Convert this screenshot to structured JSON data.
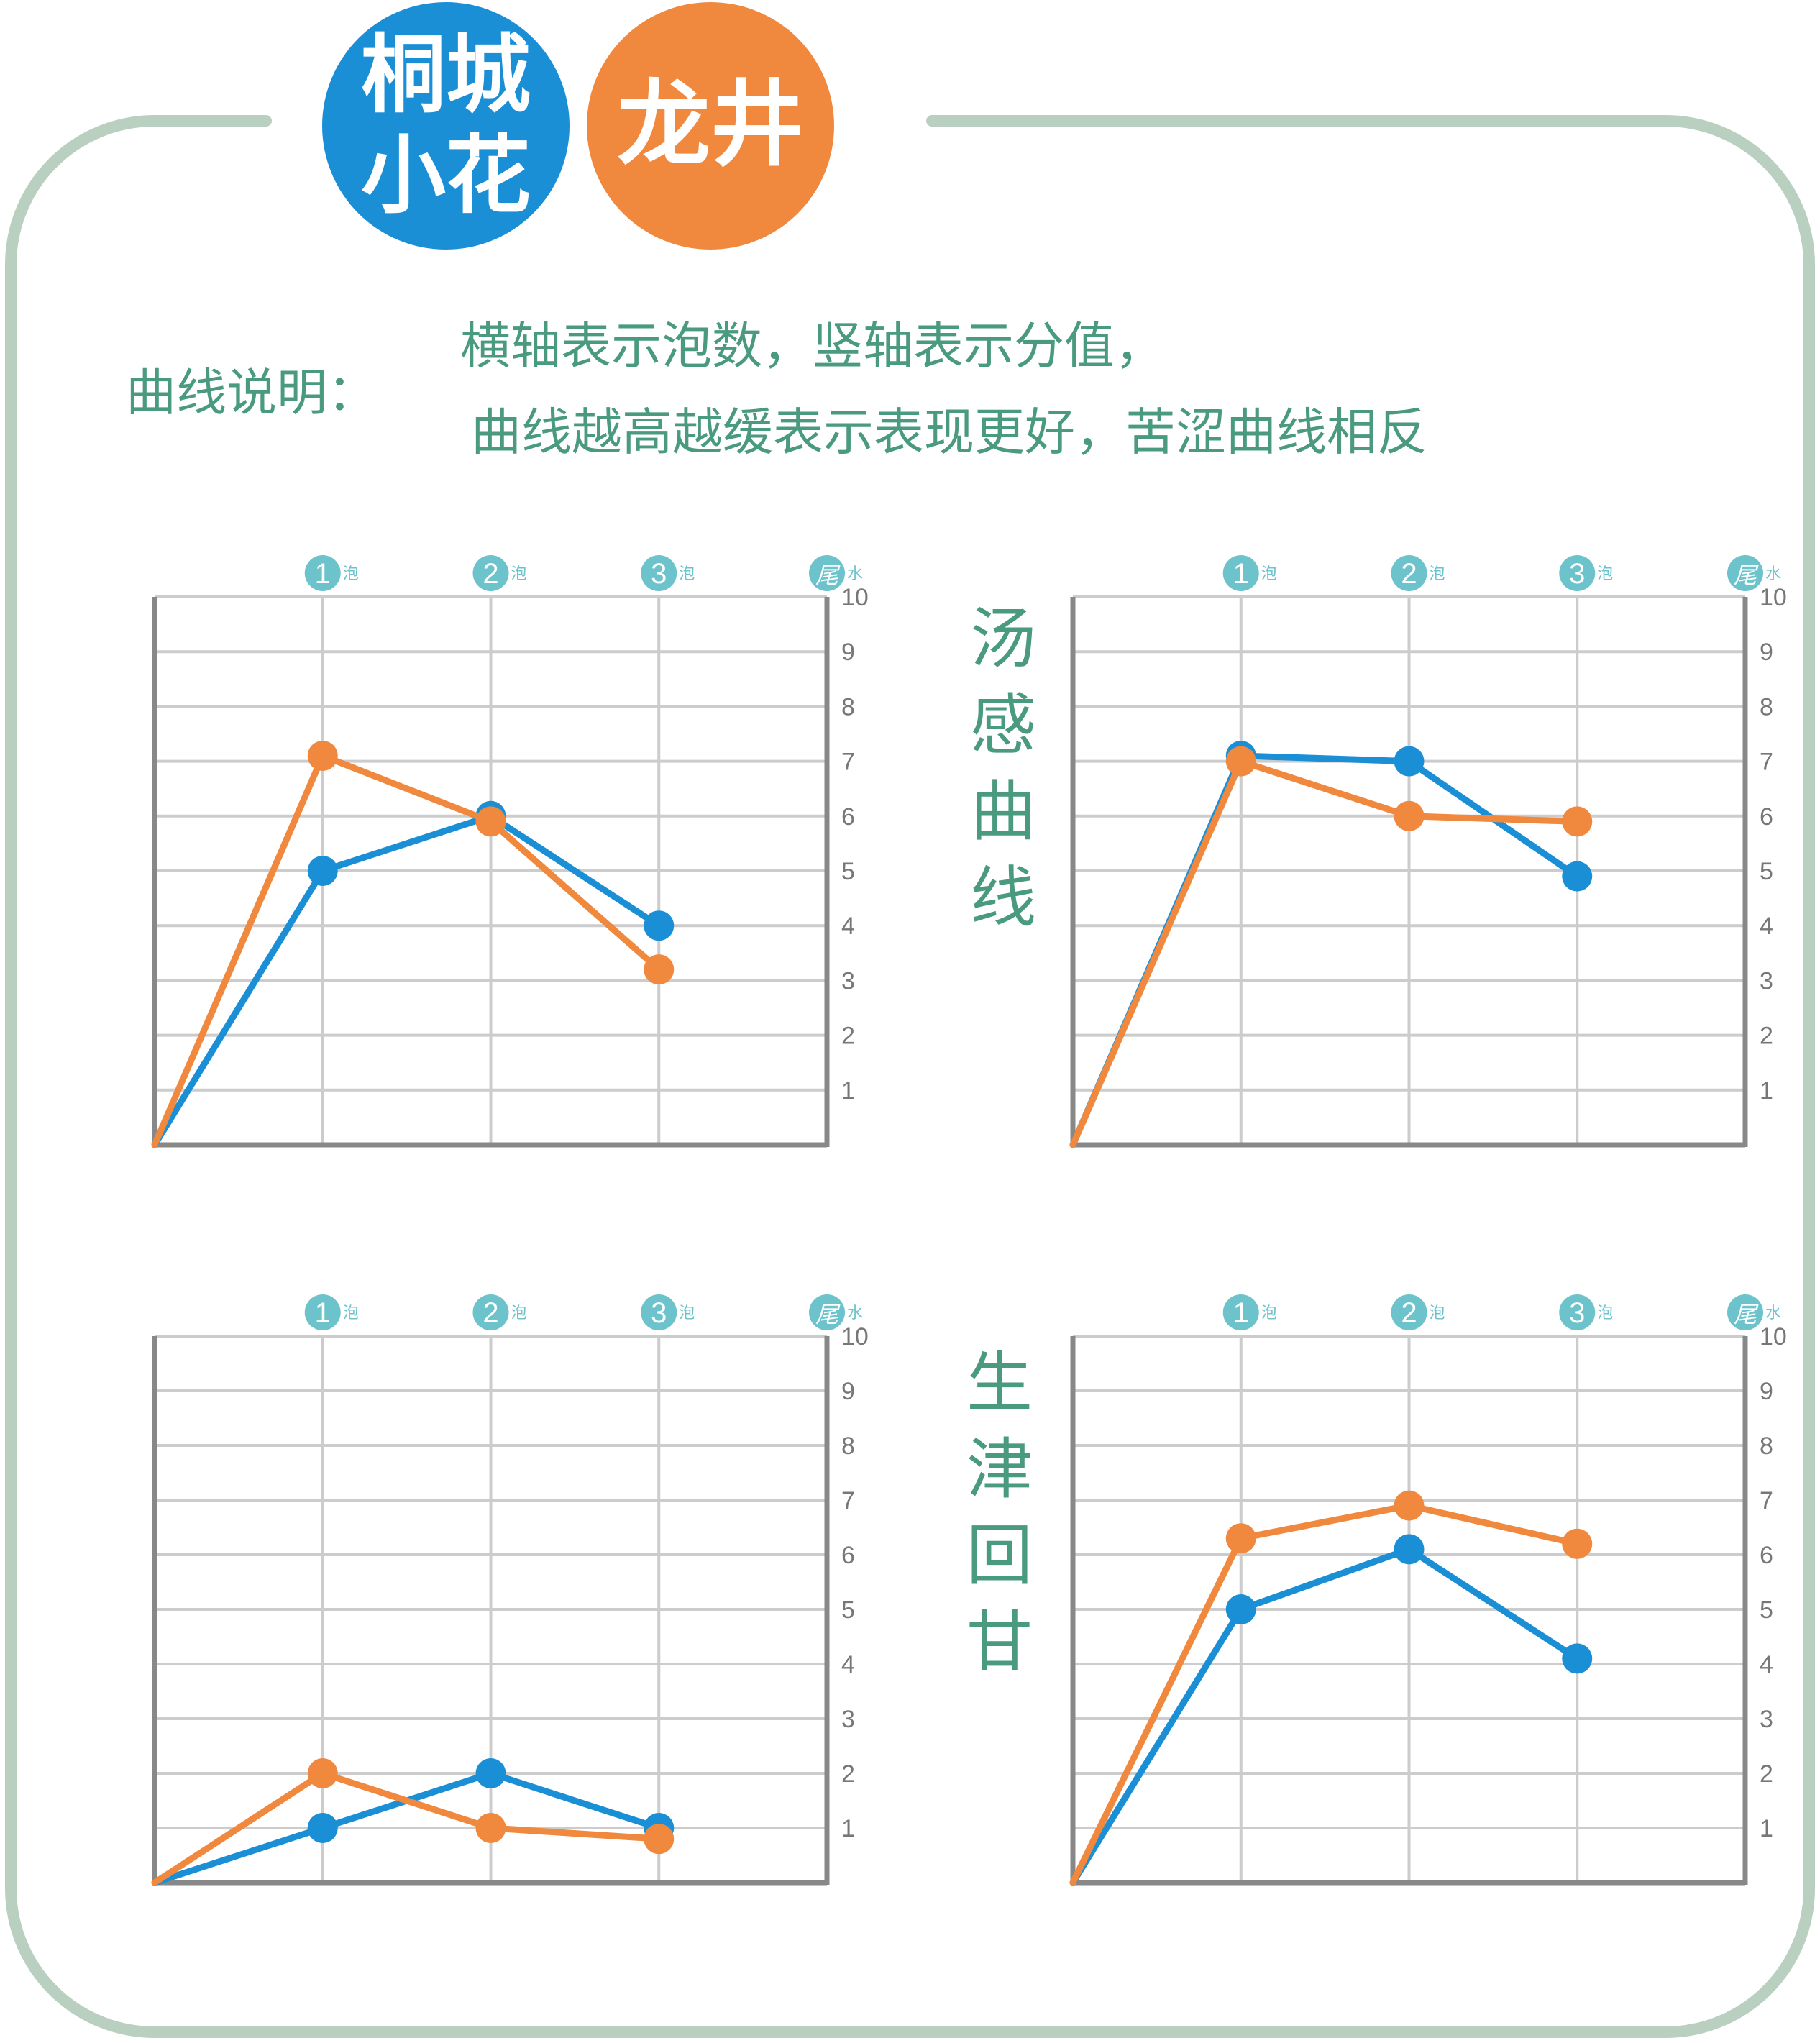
{
  "header": {
    "badge_blue": {
      "line1": "桐城",
      "line2": "小花",
      "color": "#1b8fd6"
    },
    "badge_orange": {
      "text": "龙井",
      "color": "#f0883e"
    }
  },
  "legend": {
    "label": "曲线说明：",
    "line1": "横轴表示泡数，竖轴表示分值，",
    "line2": "曲线越高越缓表示表现更好，苦涩曲线相反"
  },
  "side_titles": {
    "soup": "汤感曲线",
    "saliva": "生津回甘"
  },
  "axis_labels": {
    "infusions": [
      "1",
      "2",
      "3",
      "尾"
    ],
    "pao": "泡",
    "shui": "水",
    "y_ticks": [
      "1",
      "2",
      "3",
      "4",
      "5",
      "6",
      "7",
      "8",
      "9",
      "10"
    ]
  },
  "colors": {
    "frame": "#b9cfbf",
    "grid": "#cccccc",
    "axis": "#888888",
    "blue": "#1b8fd6",
    "orange": "#f0883e",
    "circle": "#6cc3cc"
  },
  "chart_data": [
    {
      "type": "line",
      "title": "",
      "categories": [
        "0",
        "1",
        "2",
        "3"
      ],
      "ylim": [
        0,
        10
      ],
      "series": [
        {
          "name": "桐城小花",
          "values": [
            0,
            5,
            6,
            4
          ]
        },
        {
          "name": "龙井",
          "values": [
            0,
            7.1,
            5.9,
            3.2
          ]
        }
      ]
    },
    {
      "type": "line",
      "title": "汤感曲线",
      "categories": [
        "0",
        "1",
        "2",
        "3"
      ],
      "ylim": [
        0,
        10
      ],
      "series": [
        {
          "name": "桐城小花",
          "values": [
            0,
            7.1,
            7,
            4.9
          ]
        },
        {
          "name": "龙井",
          "values": [
            0,
            7,
            6,
            5.9
          ]
        }
      ]
    },
    {
      "type": "line",
      "title": "",
      "categories": [
        "0",
        "1",
        "2",
        "3"
      ],
      "ylim": [
        0,
        10
      ],
      "series": [
        {
          "name": "桐城小花",
          "values": [
            0,
            1,
            2,
            1
          ]
        },
        {
          "name": "龙井",
          "values": [
            0,
            2,
            1,
            0.8
          ]
        }
      ]
    },
    {
      "type": "line",
      "title": "生津回甘",
      "categories": [
        "0",
        "1",
        "2",
        "3"
      ],
      "ylim": [
        0,
        10
      ],
      "series": [
        {
          "name": "桐城小花",
          "values": [
            0,
            5,
            6.1,
            4.1
          ]
        },
        {
          "name": "龙井",
          "values": [
            0,
            6.3,
            6.9,
            6.2
          ]
        }
      ]
    }
  ]
}
